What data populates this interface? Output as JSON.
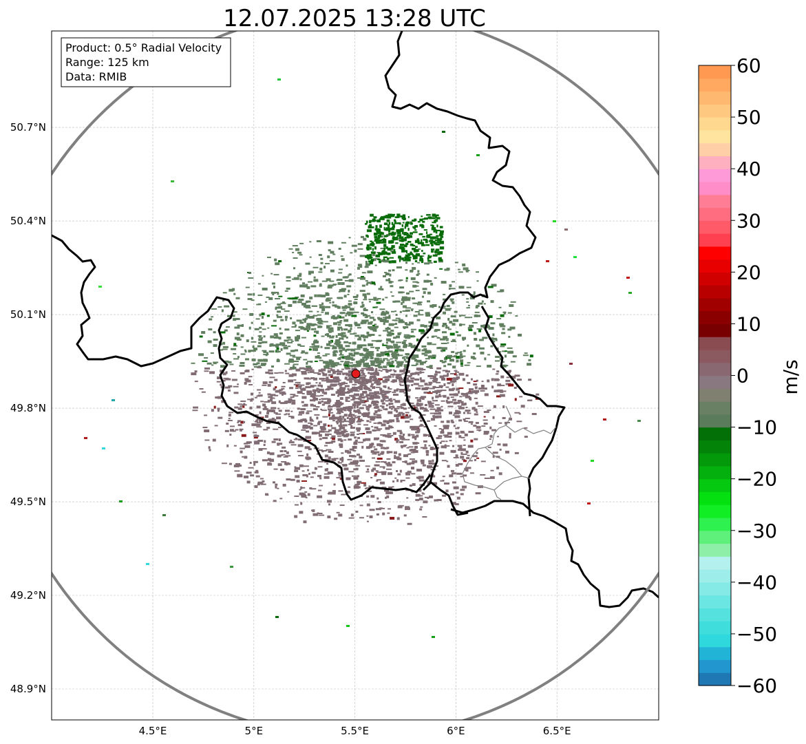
{
  "title": "12.07.2025 13:28 UTC",
  "info_box": {
    "product": "Product: 0.5° Radial Velocity",
    "range": "Range: 125 km",
    "data": "Data: RMIB"
  },
  "map": {
    "lon_range": [
      4.0,
      7.0
    ],
    "lat_range": [
      48.8,
      50.98
    ],
    "radar_site": {
      "lon": 5.505,
      "lat": 49.915
    },
    "range_ring_km": 125,
    "lon_ticks": [
      {
        "value": 4.5,
        "label": "4.5°E"
      },
      {
        "value": 5.0,
        "label": "5°E"
      },
      {
        "value": 5.5,
        "label": "5.5°E"
      },
      {
        "value": 6.0,
        "label": "6°E"
      },
      {
        "value": 6.5,
        "label": "6.5°E"
      }
    ],
    "lat_ticks": [
      {
        "value": 48.9,
        "label": "48.9°N"
      },
      {
        "value": 49.2,
        "label": "49.2°N"
      },
      {
        "value": 49.5,
        "label": "49.5°N"
      },
      {
        "value": 49.8,
        "label": "49.8°N"
      },
      {
        "value": 50.1,
        "label": "50.1°N"
      },
      {
        "value": 50.4,
        "label": "50.4°N"
      },
      {
        "value": 50.7,
        "label": "50.7°N"
      }
    ]
  },
  "colorbar": {
    "unit": "m/s",
    "min": -60,
    "max": 60,
    "ticks": [
      {
        "value": 60,
        "label": "60"
      },
      {
        "value": 50,
        "label": "50"
      },
      {
        "value": 40,
        "label": "40"
      },
      {
        "value": 30,
        "label": "30"
      },
      {
        "value": 20,
        "label": "20"
      },
      {
        "value": 10,
        "label": "10"
      },
      {
        "value": 0,
        "label": "0"
      },
      {
        "value": -10,
        "label": "−10"
      },
      {
        "value": -20,
        "label": "−20"
      },
      {
        "value": -30,
        "label": "−30"
      },
      {
        "value": -40,
        "label": "−40"
      },
      {
        "value": -50,
        "label": "−50"
      },
      {
        "value": -60,
        "label": "−60"
      }
    ],
    "colors": [
      "#1f78b4",
      "#2196cf",
      "#22b4d6",
      "#2ed8dc",
      "#3fdedc",
      "#55e2de",
      "#6ce6e2",
      "#85eae6",
      "#9deeea",
      "#b4f0ee",
      "#8ef0a8",
      "#5ef07a",
      "#2ef04e",
      "#12ee24",
      "#05e010",
      "#05c810",
      "#04b00d",
      "#04980b",
      "#038409",
      "#027007",
      "#5a7c5a",
      "#6a8064",
      "#808070",
      "#8a7880",
      "#8a6872",
      "#8a5a60",
      "#8a4c50",
      "#780000",
      "#8a0000",
      "#a00000",
      "#b80000",
      "#d00000",
      "#e80000",
      "#ff0000",
      "#ff4050",
      "#ff5a68",
      "#ff6e80",
      "#ff7e96",
      "#ff8ec8",
      "#ff9ad8",
      "#ffb0c0",
      "#ffd0a8",
      "#ffe4a0",
      "#ffd890",
      "#ffc880",
      "#ffb870",
      "#ffa860",
      "#ff9850"
    ]
  },
  "radar_data_classes": {
    "receding_color": "#7f6a72",
    "approaching_color": "#5f7d5e",
    "strong_approaching_color": "#0a6b0a",
    "strong_receding_color": "#8b1a1a"
  }
}
